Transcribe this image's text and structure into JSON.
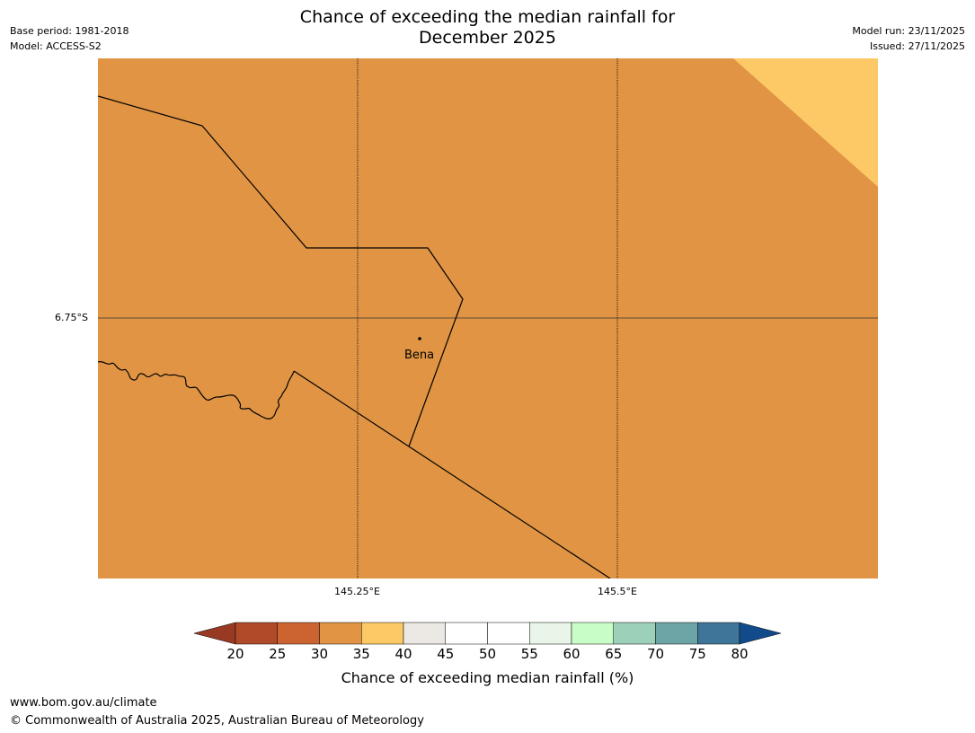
{
  "header": {
    "title_line1": "Chance of exceeding the median rainfall for",
    "title_line2": "December 2025",
    "base_period": "Base period: 1981-2018",
    "model": "Model: ACCESS-S2",
    "model_run": "Model run: 23/11/2025",
    "issued": "Issued: 27/11/2025"
  },
  "map": {
    "latitude_label": "6.75°S",
    "longitude_labels": [
      "145.25°E",
      "145.5°E"
    ],
    "place": "Bena",
    "fill_color": "#e09444",
    "corner_color": "#fdc967",
    "land_value_bin": "30-35",
    "corner_value_bin": "35-40"
  },
  "colorbar": {
    "ticks": [
      "20",
      "25",
      "30",
      "35",
      "40",
      "45",
      "50",
      "55",
      "60",
      "65",
      "70",
      "75",
      "80"
    ],
    "colors": [
      "#b04a28",
      "#cc6431",
      "#e09444",
      "#fdc967",
      "#ece8e3",
      "#ffffff",
      "#ffffff",
      "#e8f5e8",
      "#c8fdc8",
      "#9dd0b8",
      "#6da4a6",
      "#3f7599"
    ],
    "under_color": "#983924",
    "over_color": "#124b8c",
    "label": "Chance of exceeding median rainfall (%)"
  },
  "footer": {
    "url": "www.bom.gov.au/climate",
    "copyright": "© Commonwealth of Australia 2025, Australian Bureau of Meteorology"
  }
}
